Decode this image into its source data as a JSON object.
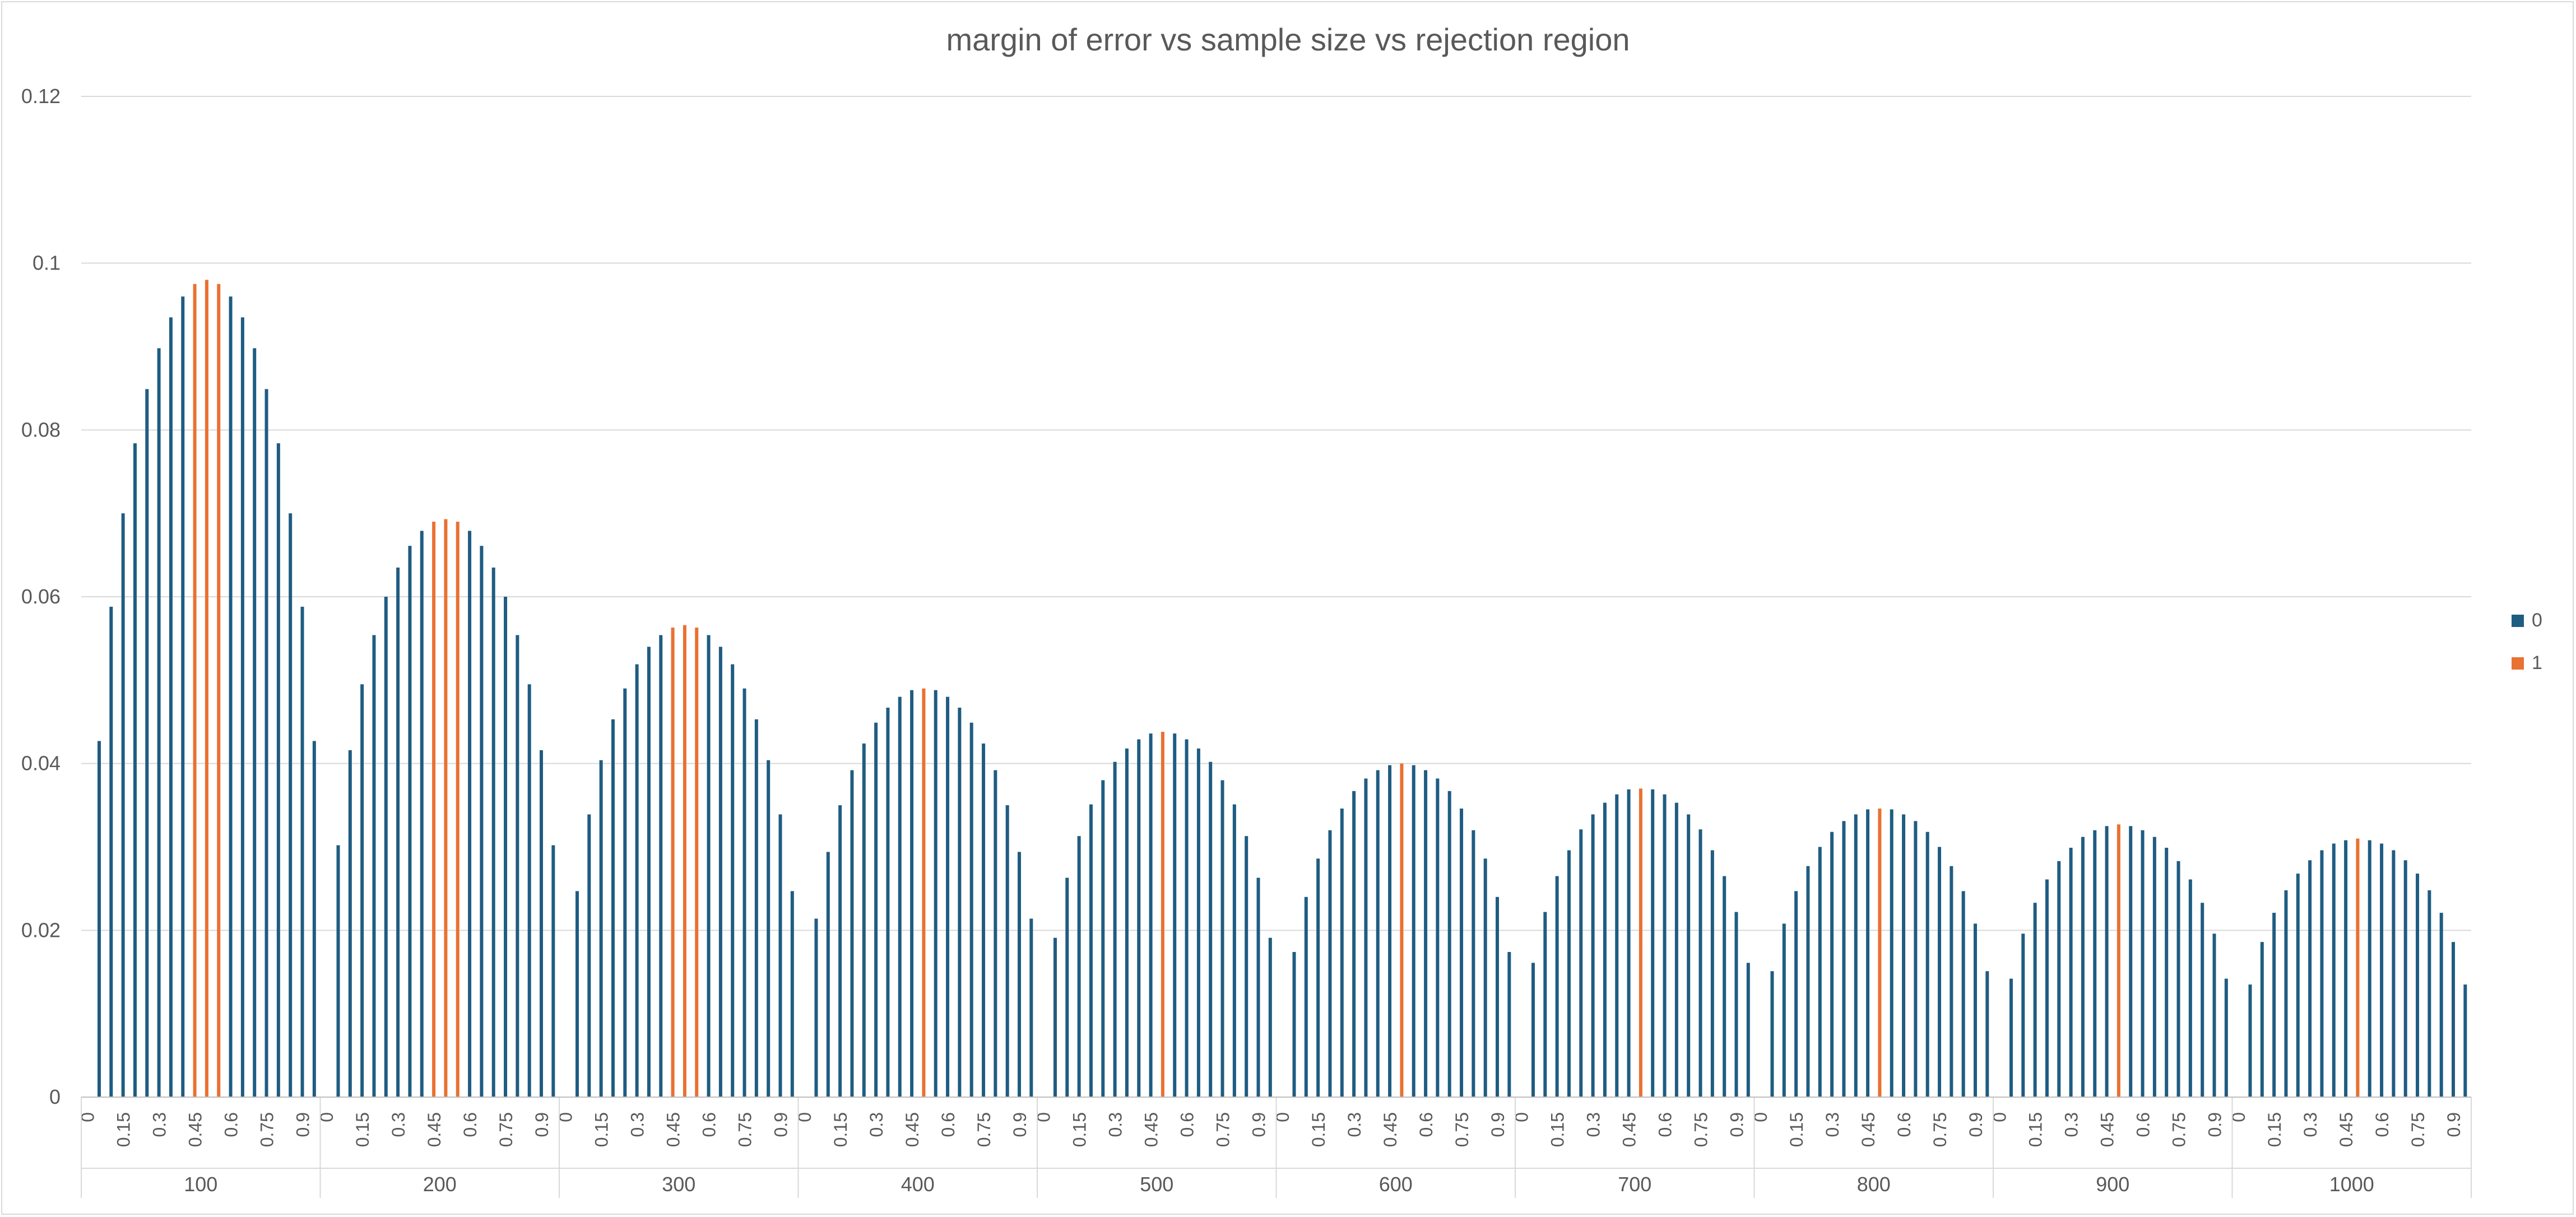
{
  "chart_data": {
    "type": "bar",
    "title": "margin of error vs sample size vs rejection region",
    "xlabel": "",
    "ylabel": "",
    "ylim": [
      0,
      0.12
    ],
    "yticks": [
      "0",
      "0.02",
      "0.04",
      "0.06",
      "0.08",
      "0.1",
      "0.12"
    ],
    "grid": true,
    "legend_position": "right",
    "groups": [
      "100",
      "200",
      "300",
      "400",
      "500",
      "600",
      "700",
      "800",
      "900",
      "1000"
    ],
    "proportions": [
      "0",
      "0.05",
      "0.1",
      "0.15",
      "0.2",
      "0.25",
      "0.3",
      "0.35",
      "0.4",
      "0.45",
      "0.5",
      "0.55",
      "0.6",
      "0.65",
      "0.7",
      "0.75",
      "0.8",
      "0.85",
      "0.9",
      "0.95"
    ],
    "tick_labels": [
      "0",
      "0.15",
      "0.3",
      "0.45",
      "0.6",
      "0.75",
      "0.9"
    ],
    "series": [
      {
        "name": "0",
        "color": "#1f5c82"
      },
      {
        "name": "1",
        "color": "#e97132"
      }
    ],
    "values": [
      [
        0,
        0.0427,
        0.0588,
        0.07,
        0.0784,
        0.0849,
        0.0898,
        0.0935,
        0.096,
        0.0975,
        0.098,
        0.0975,
        0.096,
        0.0935,
        0.0898,
        0.0849,
        0.0784,
        0.07,
        0.0588,
        0.0427
      ],
      [
        0,
        0.0302,
        0.0416,
        0.0495,
        0.0554,
        0.06,
        0.0635,
        0.0661,
        0.0679,
        0.069,
        0.0693,
        0.069,
        0.0679,
        0.0661,
        0.0635,
        0.06,
        0.0554,
        0.0495,
        0.0416,
        0.0302
      ],
      [
        0,
        0.0247,
        0.0339,
        0.0404,
        0.0453,
        0.049,
        0.0519,
        0.054,
        0.0554,
        0.0563,
        0.0566,
        0.0563,
        0.0554,
        0.054,
        0.0519,
        0.049,
        0.0453,
        0.0404,
        0.0339,
        0.0247
      ],
      [
        0,
        0.0214,
        0.0294,
        0.035,
        0.0392,
        0.0424,
        0.0449,
        0.0467,
        0.048,
        0.0488,
        0.049,
        0.0488,
        0.048,
        0.0467,
        0.0449,
        0.0424,
        0.0392,
        0.035,
        0.0294,
        0.0214
      ],
      [
        0,
        0.0191,
        0.0263,
        0.0313,
        0.0351,
        0.038,
        0.0402,
        0.0418,
        0.0429,
        0.0436,
        0.0438,
        0.0436,
        0.0429,
        0.0418,
        0.0402,
        0.038,
        0.0351,
        0.0313,
        0.0263,
        0.0191
      ],
      [
        0,
        0.0174,
        0.024,
        0.0286,
        0.032,
        0.0346,
        0.0367,
        0.0382,
        0.0392,
        0.0398,
        0.04,
        0.0398,
        0.0392,
        0.0382,
        0.0367,
        0.0346,
        0.032,
        0.0286,
        0.024,
        0.0174
      ],
      [
        0,
        0.0161,
        0.0222,
        0.0265,
        0.0296,
        0.0321,
        0.0339,
        0.0353,
        0.0363,
        0.0369,
        0.037,
        0.0369,
        0.0363,
        0.0353,
        0.0339,
        0.0321,
        0.0296,
        0.0265,
        0.0222,
        0.0161
      ],
      [
        0,
        0.0151,
        0.0208,
        0.0247,
        0.0277,
        0.03,
        0.0318,
        0.0331,
        0.0339,
        0.0345,
        0.0346,
        0.0345,
        0.0339,
        0.0331,
        0.0318,
        0.03,
        0.0277,
        0.0247,
        0.0208,
        0.0151
      ],
      [
        0,
        0.0142,
        0.0196,
        0.0233,
        0.0261,
        0.0283,
        0.0299,
        0.0312,
        0.032,
        0.0325,
        0.0327,
        0.0325,
        0.032,
        0.0312,
        0.0299,
        0.0283,
        0.0261,
        0.0233,
        0.0196,
        0.0142
      ],
      [
        0,
        0.0135,
        0.0186,
        0.0221,
        0.0248,
        0.0268,
        0.0284,
        0.0296,
        0.0304,
        0.0308,
        0.031,
        0.0308,
        0.0304,
        0.0296,
        0.0284,
        0.0268,
        0.0248,
        0.0221,
        0.0186,
        0.0135
      ]
    ],
    "highlight_series": [
      [
        0,
        0,
        0,
        0,
        0,
        0,
        0,
        0,
        0,
        1,
        1,
        1,
        0,
        0,
        0,
        0,
        0,
        0,
        0,
        0
      ],
      [
        0,
        0,
        0,
        0,
        0,
        0,
        0,
        0,
        0,
        1,
        1,
        1,
        0,
        0,
        0,
        0,
        0,
        0,
        0,
        0
      ],
      [
        0,
        0,
        0,
        0,
        0,
        0,
        0,
        0,
        0,
        1,
        1,
        1,
        0,
        0,
        0,
        0,
        0,
        0,
        0,
        0
      ],
      [
        0,
        0,
        0,
        0,
        0,
        0,
        0,
        0,
        0,
        0,
        1,
        0,
        0,
        0,
        0,
        0,
        0,
        0,
        0,
        0
      ],
      [
        0,
        0,
        0,
        0,
        0,
        0,
        0,
        0,
        0,
        0,
        1,
        0,
        0,
        0,
        0,
        0,
        0,
        0,
        0,
        0
      ],
      [
        0,
        0,
        0,
        0,
        0,
        0,
        0,
        0,
        0,
        0,
        1,
        0,
        0,
        0,
        0,
        0,
        0,
        0,
        0,
        0
      ],
      [
        0,
        0,
        0,
        0,
        0,
        0,
        0,
        0,
        0,
        0,
        1,
        0,
        0,
        0,
        0,
        0,
        0,
        0,
        0,
        0
      ],
      [
        0,
        0,
        0,
        0,
        0,
        0,
        0,
        0,
        0,
        0,
        1,
        0,
        0,
        0,
        0,
        0,
        0,
        0,
        0,
        0
      ],
      [
        0,
        0,
        0,
        0,
        0,
        0,
        0,
        0,
        0,
        0,
        1,
        0,
        0,
        0,
        0,
        0,
        0,
        0,
        0,
        0
      ],
      [
        0,
        0,
        0,
        0,
        0,
        0,
        0,
        0,
        0,
        0,
        1,
        0,
        0,
        0,
        0,
        0,
        0,
        0,
        0,
        0
      ]
    ]
  }
}
